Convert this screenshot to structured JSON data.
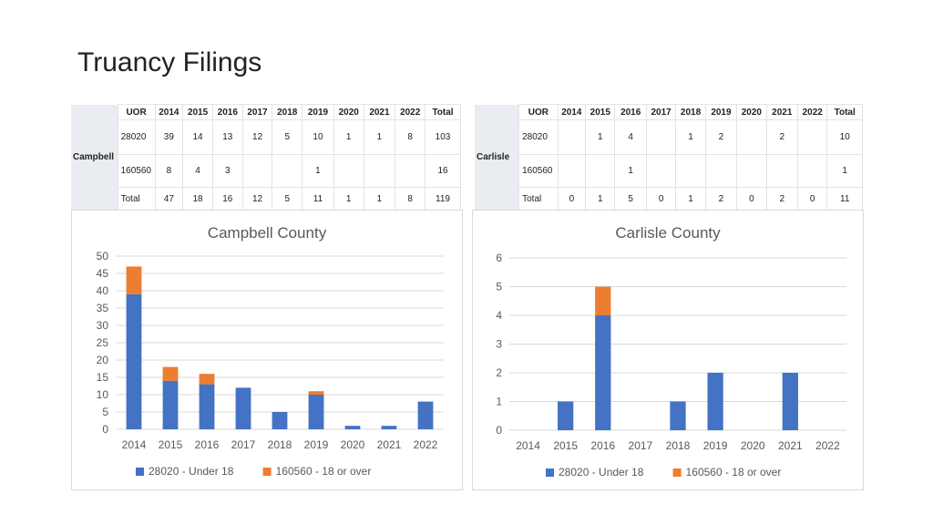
{
  "page_title": "Truancy Filings",
  "tables": [
    {
      "side_label": "Campbell",
      "header": [
        "UOR",
        "2014",
        "2015",
        "2016",
        "2017",
        "2018",
        "2019",
        "2020",
        "2021",
        "2022",
        "Total"
      ],
      "rows": [
        [
          "28020",
          "39",
          "14",
          "13",
          "12",
          "5",
          "10",
          "1",
          "1",
          "8",
          "103"
        ],
        [
          "160560",
          "8",
          "4",
          "3",
          "",
          "",
          "1",
          "",
          "",
          "",
          "16"
        ],
        [
          "Total",
          "47",
          "18",
          "16",
          "12",
          "5",
          "11",
          "1",
          "1",
          "8",
          "119"
        ]
      ]
    },
    {
      "side_label": "Carlisle",
      "header": [
        "UOR",
        "2014",
        "2015",
        "2016",
        "2017",
        "2018",
        "2019",
        "2020",
        "2021",
        "2022",
        "Total"
      ],
      "rows": [
        [
          "28020",
          "",
          "1",
          "4",
          "",
          "1",
          "2",
          "",
          "2",
          "",
          "10"
        ],
        [
          "160560",
          "",
          "",
          "1",
          "",
          "",
          "",
          "",
          "",
          "",
          "1"
        ],
        [
          "Total",
          "0",
          "1",
          "5",
          "0",
          "1",
          "2",
          "0",
          "2",
          "0",
          "11"
        ]
      ]
    }
  ],
  "chart_data": [
    {
      "type": "bar",
      "stacked": true,
      "title": "Campbell County",
      "categories": [
        "2014",
        "2015",
        "2016",
        "2017",
        "2018",
        "2019",
        "2020",
        "2021",
        "2022"
      ],
      "series": [
        {
          "name": "28020 - Under 18",
          "values": [
            39,
            14,
            13,
            12,
            5,
            10,
            1,
            1,
            8
          ],
          "color": "#4472C4"
        },
        {
          "name": "160560 - 18 or over",
          "values": [
            8,
            4,
            3,
            0,
            0,
            1,
            0,
            0,
            0
          ],
          "color": "#ED7D31"
        }
      ],
      "ylim": [
        0,
        50
      ],
      "yticks": [
        "0",
        "5",
        "10",
        "15",
        "20",
        "25",
        "30",
        "35",
        "40",
        "45",
        "50"
      ],
      "grid": true,
      "legend": "bottom"
    },
    {
      "type": "bar",
      "stacked": true,
      "title": "Carlisle County",
      "categories": [
        "2014",
        "2015",
        "2016",
        "2017",
        "2018",
        "2019",
        "2020",
        "2021",
        "2022"
      ],
      "series": [
        {
          "name": "28020 - Under 18",
          "values": [
            0,
            1,
            4,
            0,
            1,
            2,
            0,
            2,
            0
          ],
          "color": "#4472C4"
        },
        {
          "name": "160560 - 18 or over",
          "values": [
            0,
            0,
            1,
            0,
            0,
            0,
            0,
            0,
            0
          ],
          "color": "#ED7D31"
        }
      ],
      "ylim": [
        0,
        6
      ],
      "yticks": [
        "0",
        "1",
        "2",
        "3",
        "4",
        "5",
        "6"
      ],
      "grid": true,
      "legend": "bottom"
    }
  ]
}
